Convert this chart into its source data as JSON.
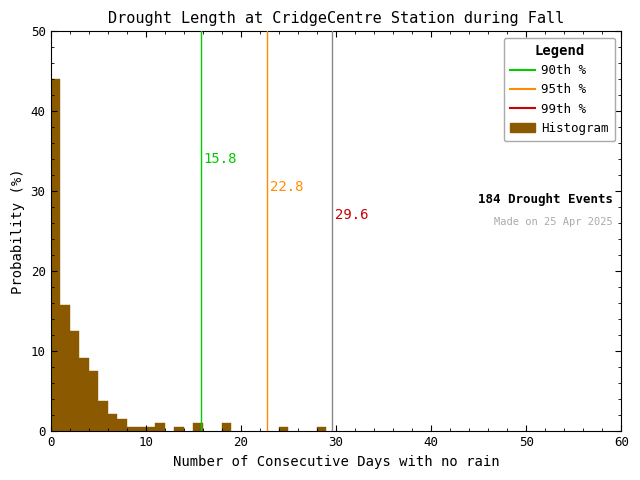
{
  "title": "Drought Length at CridgeCentre Station during Fall",
  "xlabel": "Number of Consecutive Days with no rain",
  "ylabel": "Probability (%)",
  "xlim": [
    0,
    60
  ],
  "ylim": [
    0,
    50
  ],
  "xticks": [
    0,
    10,
    20,
    30,
    40,
    50,
    60
  ],
  "yticks": [
    0,
    10,
    20,
    30,
    40,
    50
  ],
  "bar_color": "#8B5A00",
  "bar_edgecolor": "#8B5A00",
  "hist_bins": [
    1,
    2,
    3,
    4,
    5,
    6,
    7,
    8,
    9,
    10,
    11,
    12,
    13,
    14,
    15,
    16,
    17,
    18,
    19,
    20,
    21,
    22,
    23,
    24,
    25,
    26,
    27,
    28,
    29,
    30,
    31,
    32
  ],
  "hist_values": [
    44.0,
    15.8,
    12.5,
    9.2,
    7.6,
    3.8,
    2.2,
    1.6,
    0.5,
    0.5,
    0.5,
    1.1,
    0.0,
    0.5,
    0.0,
    1.1,
    0.0,
    0.0,
    1.1,
    0.0,
    0.0,
    0.0,
    0.0,
    0.0,
    0.5,
    0.0,
    0.0,
    0.0,
    0.5,
    0.0,
    0.0
  ],
  "percentile_90": 15.8,
  "percentile_95": 22.8,
  "percentile_99": 29.6,
  "color_90": "#00CC00",
  "color_95": "#FF8C00",
  "color_99": "#CC0000",
  "color_99_line": "#888888",
  "legend_title": "Legend",
  "drought_events": "184 Drought Events",
  "made_on": "Made on 25 Apr 2025",
  "background_color": "#FFFFFF",
  "title_fontsize": 11,
  "label_fontsize": 10,
  "tick_fontsize": 9,
  "legend_fontsize": 9,
  "annot_fontsize": 10
}
